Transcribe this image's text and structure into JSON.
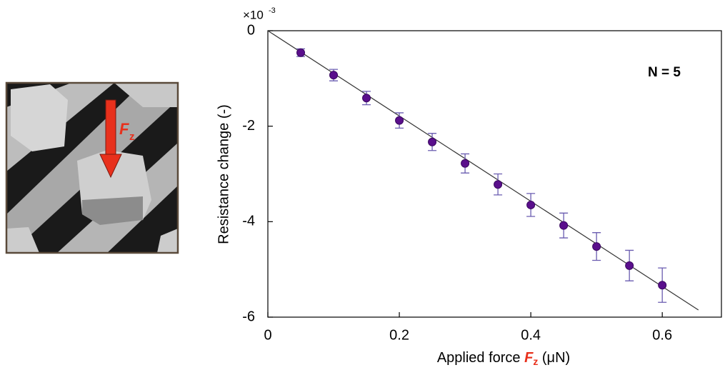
{
  "chart_data": {
    "type": "scatter",
    "unit_label": {
      "base": "×10",
      "exponent": "-3"
    },
    "x_label": {
      "text": "Applied force ",
      "symbol": "F",
      "subscript": "z",
      "unit": " (μN)"
    },
    "y_label": "Resistance change (-)",
    "annotation": "N = 5",
    "x": [
      0.05,
      0.1,
      0.15,
      0.2,
      0.25,
      0.3,
      0.35,
      0.4,
      0.45,
      0.5,
      0.55,
      0.6
    ],
    "series": [
      {
        "color": "#5a0f8c",
        "values": [
          -0.46,
          -0.93,
          -1.41,
          -1.88,
          -2.33,
          -2.78,
          -3.22,
          -3.65,
          -4.08,
          -4.52,
          -4.92,
          -5.33
        ],
        "errors": [
          0.08,
          0.12,
          0.14,
          0.16,
          0.18,
          0.2,
          0.22,
          0.24,
          0.26,
          0.29,
          0.32,
          0.36
        ],
        "error_color": "#6a5cb0"
      }
    ],
    "fit": {
      "x": [
        0,
        0.655
      ],
      "y": [
        0,
        -5.85
      ],
      "color": "#333333"
    },
    "xlim": [
      0,
      0.69
    ],
    "ylim": [
      -6,
      0
    ],
    "xticks": [
      0,
      0.2,
      0.4,
      0.6
    ],
    "yticks": [
      0,
      -2,
      -4,
      -6
    ]
  },
  "inset": {
    "force_symbol": "F",
    "force_subscript": "z"
  }
}
